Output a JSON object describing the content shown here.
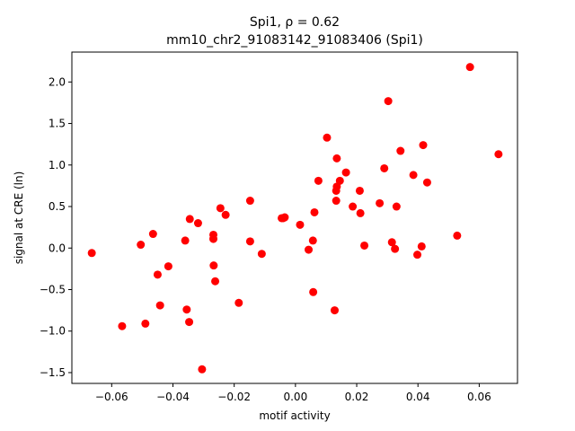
{
  "chart_data": {
    "type": "scatter",
    "title_line1": "Spi1, ρ = 0.62",
    "title_line2": "mm10_chr2_91083142_91083406 (Spi1)",
    "xlabel": "motif activity",
    "ylabel": "signal at CRE (ln)",
    "xlim": [
      -0.073,
      0.0725
    ],
    "ylim": [
      -1.63,
      2.36
    ],
    "xticks": [
      -0.06,
      -0.04,
      -0.02,
      0.0,
      0.02,
      0.04,
      0.06
    ],
    "xtick_labels": [
      "−0.06",
      "−0.04",
      "−0.02",
      "0.00",
      "0.02",
      "0.04",
      "0.06"
    ],
    "yticks": [
      -1.5,
      -1.0,
      -0.5,
      0.0,
      0.5,
      1.0,
      1.5,
      2.0
    ],
    "ytick_labels": [
      "−1.5",
      "−1.0",
      "−0.5",
      "0.0",
      "0.5",
      "1.0",
      "1.5",
      "2.0"
    ],
    "grid": false,
    "marker_color": "#ff0000",
    "points": [
      {
        "x": -0.0665,
        "y": -0.06
      },
      {
        "x": -0.0566,
        "y": -0.94
      },
      {
        "x": -0.0505,
        "y": 0.04
      },
      {
        "x": -0.049,
        "y": -0.91
      },
      {
        "x": -0.0465,
        "y": 0.17
      },
      {
        "x": -0.045,
        "y": -0.32
      },
      {
        "x": -0.0442,
        "y": -0.69
      },
      {
        "x": -0.0415,
        "y": -0.22
      },
      {
        "x": -0.036,
        "y": 0.09
      },
      {
        "x": -0.0355,
        "y": -0.74
      },
      {
        "x": -0.0347,
        "y": -0.89
      },
      {
        "x": -0.0345,
        "y": 0.35
      },
      {
        "x": -0.0318,
        "y": 0.3
      },
      {
        "x": -0.0305,
        "y": -1.46
      },
      {
        "x": -0.0268,
        "y": 0.11
      },
      {
        "x": -0.0268,
        "y": 0.16
      },
      {
        "x": -0.0267,
        "y": -0.21
      },
      {
        "x": -0.0262,
        "y": -0.4
      },
      {
        "x": -0.0245,
        "y": 0.48
      },
      {
        "x": -0.0228,
        "y": 0.4
      },
      {
        "x": -0.0185,
        "y": -0.66
      },
      {
        "x": -0.0148,
        "y": 0.57
      },
      {
        "x": -0.0148,
        "y": 0.08
      },
      {
        "x": -0.011,
        "y": -0.07
      },
      {
        "x": -0.0045,
        "y": 0.36
      },
      {
        "x": -0.004,
        "y": 0.36
      },
      {
        "x": -0.0035,
        "y": 0.37
      },
      {
        "x": 0.0015,
        "y": 0.28
      },
      {
        "x": 0.0043,
        "y": -0.02
      },
      {
        "x": 0.0057,
        "y": 0.09
      },
      {
        "x": 0.0058,
        "y": -0.53
      },
      {
        "x": 0.0062,
        "y": 0.43
      },
      {
        "x": 0.0075,
        "y": 0.81
      },
      {
        "x": 0.0103,
        "y": 1.33
      },
      {
        "x": 0.0128,
        "y": -0.75
      },
      {
        "x": 0.0133,
        "y": 0.57
      },
      {
        "x": 0.0133,
        "y": 0.69
      },
      {
        "x": 0.0135,
        "y": 0.74
      },
      {
        "x": 0.0135,
        "y": 1.08
      },
      {
        "x": 0.0145,
        "y": 0.81
      },
      {
        "x": 0.0165,
        "y": 0.91
      },
      {
        "x": 0.0187,
        "y": 0.5
      },
      {
        "x": 0.021,
        "y": 0.69
      },
      {
        "x": 0.0212,
        "y": 0.42
      },
      {
        "x": 0.0225,
        "y": 0.03
      },
      {
        "x": 0.0275,
        "y": 0.54
      },
      {
        "x": 0.029,
        "y": 0.96
      },
      {
        "x": 0.0303,
        "y": 1.77
      },
      {
        "x": 0.0315,
        "y": 0.07
      },
      {
        "x": 0.0325,
        "y": -0.01
      },
      {
        "x": 0.033,
        "y": 0.5
      },
      {
        "x": 0.0343,
        "y": 1.17
      },
      {
        "x": 0.0385,
        "y": 0.88
      },
      {
        "x": 0.0398,
        "y": -0.08
      },
      {
        "x": 0.0412,
        "y": 0.02
      },
      {
        "x": 0.0417,
        "y": 1.24
      },
      {
        "x": 0.043,
        "y": 0.79
      },
      {
        "x": 0.0528,
        "y": 0.15
      },
      {
        "x": 0.057,
        "y": 2.18
      },
      {
        "x": 0.0663,
        "y": 1.13
      }
    ]
  }
}
